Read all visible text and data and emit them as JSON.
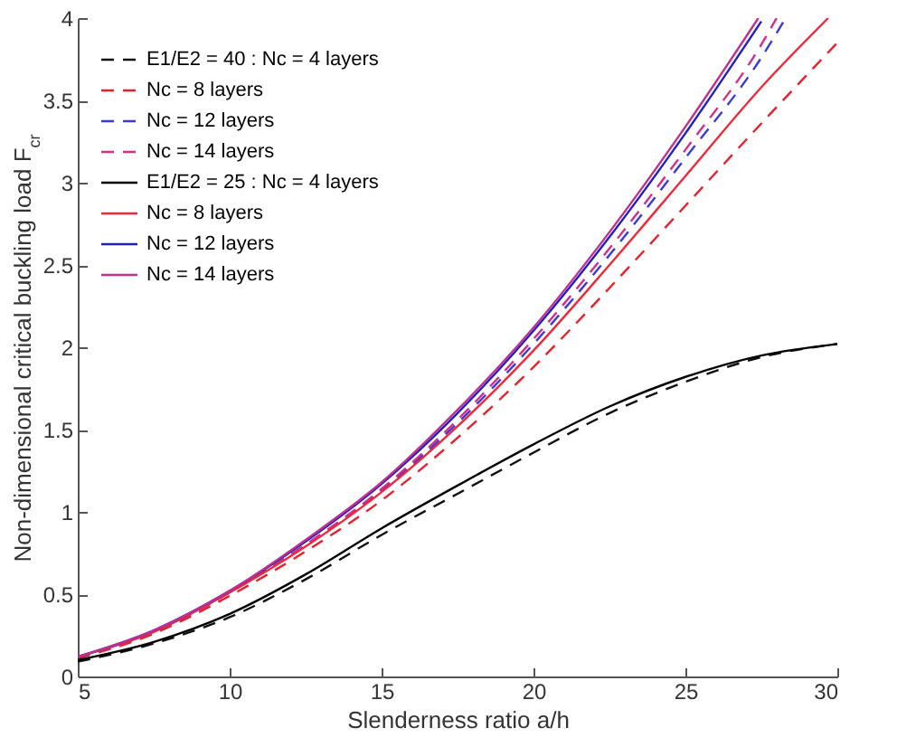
{
  "chart_data": {
    "type": "line",
    "xlabel": "Slenderness ratio a/h",
    "ylabel": "Non-dimensional critical buckling load F$_{cr}$",
    "xlim": [
      5,
      30
    ],
    "ylim": [
      0,
      4
    ],
    "xticks": [
      5,
      10,
      15,
      20,
      25,
      30
    ],
    "yticks": [
      0,
      0.5,
      1,
      1.5,
      2,
      2.5,
      3,
      3.5,
      4
    ],
    "grid": false,
    "legend": "top left",
    "series": [
      {
        "name": "E1/E2 = 40 : Nc = 4  layers",
        "color": "#111111",
        "line_style": "dashed",
        "x": [
          5,
          7.5,
          10,
          12.5,
          15,
          17.5,
          20,
          22.5,
          25,
          27.5,
          30
        ],
        "values": [
          0.09,
          0.2,
          0.36,
          0.59,
          0.86,
          1.11,
          1.36,
          1.6,
          1.79,
          1.94,
          2.02
        ]
      },
      {
        "name": "Nc = 8  layers",
        "color": "#e8202a",
        "line_style": "dashed",
        "x": [
          5,
          7.5,
          10,
          12.5,
          15,
          17.5,
          20,
          22.5,
          25,
          27.5,
          30
        ],
        "values": [
          0.11,
          0.26,
          0.49,
          0.76,
          1.07,
          1.45,
          1.88,
          2.36,
          2.86,
          3.36,
          3.85
        ]
      },
      {
        "name": "Nc = 12 layers",
        "color": "#3a3ad8",
        "line_style": "dashed",
        "x": [
          5,
          7.5,
          10,
          12.5,
          15,
          17.5,
          20,
          22.5,
          25,
          27.5,
          28.3
        ],
        "values": [
          0.12,
          0.27,
          0.51,
          0.8,
          1.13,
          1.54,
          2.02,
          2.56,
          3.15,
          3.76,
          4.0
        ]
      },
      {
        "name": "Nc = 14 layers",
        "color": "#d62d8a",
        "line_style": "dashed",
        "x": [
          5,
          7.5,
          10,
          12.5,
          15,
          17.5,
          20,
          22.5,
          25,
          27.5,
          28.0
        ],
        "values": [
          0.12,
          0.27,
          0.51,
          0.8,
          1.14,
          1.56,
          2.05,
          2.6,
          3.2,
          3.84,
          4.0
        ]
      },
      {
        "name": "E1/E2 = 25 : Nc = 4   layers",
        "color": "#000000",
        "line_style": "solid",
        "x": [
          5,
          7.5,
          10,
          12.5,
          15,
          17.5,
          20,
          22.5,
          25,
          27.5,
          30
        ],
        "values": [
          0.1,
          0.21,
          0.38,
          0.62,
          0.9,
          1.16,
          1.41,
          1.64,
          1.82,
          1.95,
          2.02
        ]
      },
      {
        "name": "Nc = 8   layers",
        "color": "#ee2a3a",
        "line_style": "solid",
        "x": [
          5,
          7.5,
          10,
          12.5,
          15,
          17.5,
          20,
          22.5,
          25,
          27.5,
          29.7
        ],
        "values": [
          0.12,
          0.27,
          0.51,
          0.79,
          1.12,
          1.52,
          1.98,
          2.5,
          3.04,
          3.58,
          4.0
        ]
      },
      {
        "name": "Nc = 12 layers",
        "color": "#2020c0",
        "line_style": "solid",
        "x": [
          5,
          7.5,
          10,
          12.5,
          15,
          17.5,
          20,
          22.5,
          25,
          27.5
        ],
        "values": [
          0.12,
          0.28,
          0.52,
          0.82,
          1.17,
          1.6,
          2.1,
          2.67,
          3.3,
          3.98
        ]
      },
      {
        "name": "Nc = 14 layers",
        "color": "#c0308f",
        "line_style": "solid",
        "x": [
          5,
          7.5,
          10,
          12.5,
          15,
          17.5,
          20,
          22.5,
          25,
          27.4
        ],
        "values": [
          0.12,
          0.28,
          0.52,
          0.83,
          1.18,
          1.62,
          2.12,
          2.7,
          3.34,
          4.0
        ]
      }
    ]
  }
}
